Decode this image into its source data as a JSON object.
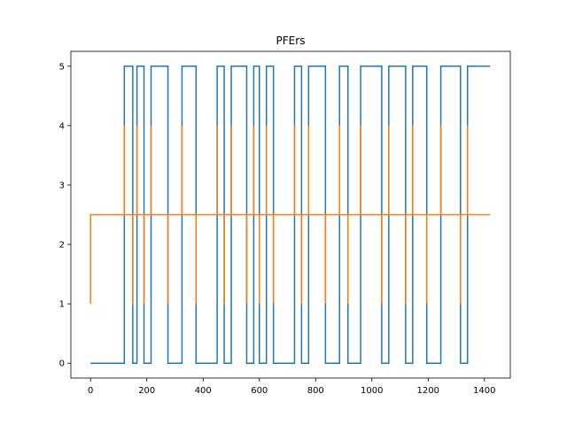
{
  "chart_data": {
    "type": "line",
    "title": "PFErs",
    "xlabel": "",
    "ylabel": "",
    "xlim": [
      -70,
      1492
    ],
    "ylim": [
      -0.25,
      5.25
    ],
    "xticks": [
      0,
      200,
      400,
      600,
      800,
      1000,
      1200,
      1400
    ],
    "yticks": [
      0,
      1,
      2,
      3,
      4,
      5
    ],
    "grid": false,
    "series": [
      {
        "color": "#1f77b4",
        "x": [
          0,
          120,
          120,
          150,
          150,
          165,
          165,
          190,
          190,
          215,
          215,
          275,
          275,
          325,
          325,
          375,
          375,
          450,
          450,
          475,
          475,
          500,
          500,
          555,
          555,
          580,
          580,
          600,
          600,
          625,
          625,
          650,
          650,
          650,
          650,
          725,
          725,
          750,
          750,
          775,
          775,
          835,
          835,
          885,
          885,
          915,
          915,
          960,
          960,
          1035,
          1035,
          1060,
          1060,
          1120,
          1120,
          1145,
          1145,
          1195,
          1195,
          1245,
          1245,
          1315,
          1315,
          1340,
          1340,
          1420
        ],
        "y": [
          0,
          0,
          5,
          5,
          0,
          0,
          5,
          5,
          0,
          0,
          5,
          5,
          0,
          0,
          5,
          5,
          0,
          0,
          5,
          5,
          0,
          0,
          5,
          5,
          0,
          0,
          5,
          5,
          0,
          0,
          5,
          5,
          5,
          0,
          0,
          0,
          5,
          5,
          0,
          0,
          5,
          5,
          0,
          0,
          5,
          5,
          0,
          0,
          5,
          5,
          0,
          0,
          5,
          5,
          0,
          0,
          5,
          5,
          0,
          0,
          5,
          5,
          0,
          0,
          5,
          5
        ]
      },
      {
        "color": "#ff7f0e",
        "x": [
          0,
          0,
          0,
          120,
          120,
          120,
          150,
          150,
          150,
          165,
          165,
          165,
          190,
          190,
          190,
          215,
          215,
          215,
          275,
          275,
          275,
          325,
          325,
          325,
          375,
          375,
          375,
          450,
          450,
          450,
          475,
          475,
          475,
          500,
          500,
          500,
          555,
          555,
          555,
          580,
          580,
          580,
          600,
          600,
          600,
          625,
          625,
          625,
          650,
          650,
          650,
          725,
          725,
          725,
          750,
          750,
          750,
          775,
          775,
          775,
          835,
          835,
          835,
          885,
          885,
          885,
          915,
          915,
          915,
          960,
          960,
          960,
          1035,
          1035,
          1035,
          1060,
          1060,
          1060,
          1120,
          1120,
          1120,
          1145,
          1145,
          1145,
          1195,
          1195,
          1195,
          1245,
          1245,
          1245,
          1315,
          1315,
          1315,
          1340,
          1340,
          1340,
          1420
        ],
        "y": [
          1,
          2.5,
          2.5,
          2.5,
          4,
          2.5,
          2.5,
          1,
          2.5,
          2.5,
          4,
          2.5,
          2.5,
          1,
          2.5,
          2.5,
          4,
          2.5,
          2.5,
          1,
          2.5,
          2.5,
          4,
          2.5,
          2.5,
          1,
          2.5,
          2.5,
          4,
          2.5,
          2.5,
          1,
          2.5,
          2.5,
          4,
          2.5,
          2.5,
          1,
          2.5,
          2.5,
          4,
          2.5,
          2.5,
          1,
          2.5,
          2.5,
          4,
          2.5,
          2.5,
          1,
          2.5,
          2.5,
          4,
          2.5,
          2.5,
          1,
          2.5,
          2.5,
          4,
          2.5,
          2.5,
          1,
          2.5,
          2.5,
          4,
          2.5,
          2.5,
          1,
          2.5,
          2.5,
          4,
          2.5,
          2.5,
          1,
          2.5,
          2.5,
          4,
          2.5,
          2.5,
          1,
          2.5,
          2.5,
          4,
          2.5,
          2.5,
          1,
          2.5,
          2.5,
          4,
          2.5,
          2.5,
          1,
          2.5,
          2.5,
          4,
          2.5,
          2.5
        ]
      }
    ]
  }
}
